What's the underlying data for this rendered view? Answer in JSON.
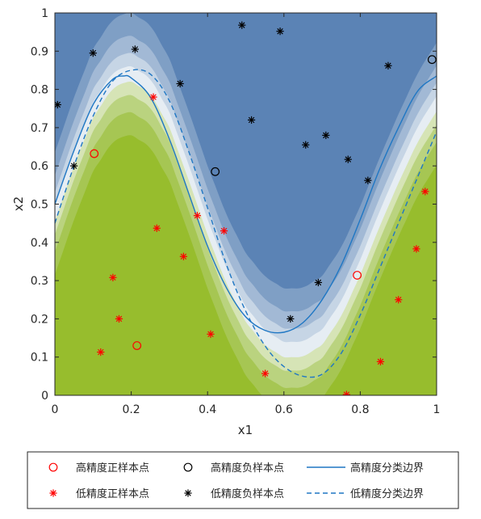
{
  "chart_data": {
    "type": "scatter",
    "title": "",
    "xlabel": "x1",
    "ylabel": "x2",
    "xlim": [
      0,
      1
    ],
    "ylim": [
      0,
      1
    ],
    "xticks": [
      "0",
      "0.2",
      "0.4",
      "0.6",
      "0.8",
      "1"
    ],
    "yticks": [
      "0",
      "0.1",
      "0.2",
      "0.3",
      "0.4",
      "0.5",
      "0.6",
      "0.7",
      "0.8",
      "0.9",
      "1"
    ],
    "grid": false,
    "legend_position": "bottom",
    "colors": {
      "negative_region": "#5b83b5",
      "positive_region": "#97bd2d",
      "boundary": "#1f77c4",
      "positive_marker": "#ff0000",
      "negative_marker": "#000000"
    },
    "series": [
      {
        "name": "高精度正样本点",
        "marker": "circle",
        "color": "#ff0000",
        "points": [
          [
            0.103,
            0.632
          ],
          [
            0.215,
            0.13
          ],
          [
            0.792,
            0.314
          ]
        ]
      },
      {
        "name": "高精度负样本点",
        "marker": "circle",
        "color": "#000000",
        "points": [
          [
            0.42,
            0.585
          ],
          [
            0.988,
            0.878
          ]
        ]
      },
      {
        "name": "低精度正样本点",
        "marker": "star",
        "color": "#ff0000",
        "points": [
          [
            0.258,
            0.78
          ],
          [
            0.267,
            0.437
          ],
          [
            0.373,
            0.47
          ],
          [
            0.443,
            0.43
          ],
          [
            0.337,
            0.363
          ],
          [
            0.152,
            0.308
          ],
          [
            0.168,
            0.2
          ],
          [
            0.12,
            0.113
          ],
          [
            0.408,
            0.16
          ],
          [
            0.551,
            0.057
          ],
          [
            0.764,
            0.002
          ],
          [
            0.853,
            0.088
          ],
          [
            0.9,
            0.25
          ],
          [
            0.947,
            0.383
          ],
          [
            0.97,
            0.533
          ]
        ]
      },
      {
        "name": "低精度负样本点",
        "marker": "star",
        "color": "#000000",
        "points": [
          [
            0.007,
            0.76
          ],
          [
            0.05,
            0.6
          ],
          [
            0.1,
            0.895
          ],
          [
            0.21,
            0.905
          ],
          [
            0.328,
            0.815
          ],
          [
            0.49,
            0.968
          ],
          [
            0.515,
            0.72
          ],
          [
            0.59,
            0.952
          ],
          [
            0.617,
            0.2
          ],
          [
            0.657,
            0.655
          ],
          [
            0.69,
            0.295
          ],
          [
            0.71,
            0.68
          ],
          [
            0.768,
            0.617
          ],
          [
            0.82,
            0.562
          ],
          [
            0.873,
            0.862
          ]
        ]
      },
      {
        "name": "高精度分类边界",
        "line_style": "solid",
        "color": "#1f77c4",
        "points": [
          [
            0,
            0.5
          ],
          [
            0.05,
            0.64
          ],
          [
            0.1,
            0.76
          ],
          [
            0.15,
            0.825
          ],
          [
            0.18,
            0.835
          ],
          [
            0.2,
            0.83
          ],
          [
            0.25,
            0.78
          ],
          [
            0.3,
            0.67
          ],
          [
            0.35,
            0.53
          ],
          [
            0.4,
            0.39
          ],
          [
            0.45,
            0.28
          ],
          [
            0.5,
            0.205
          ],
          [
            0.55,
            0.17
          ],
          [
            0.6,
            0.165
          ],
          [
            0.65,
            0.19
          ],
          [
            0.7,
            0.25
          ],
          [
            0.75,
            0.34
          ],
          [
            0.8,
            0.46
          ],
          [
            0.85,
            0.59
          ],
          [
            0.9,
            0.7
          ],
          [
            0.95,
            0.795
          ],
          [
            1,
            0.835
          ]
        ]
      },
      {
        "name": "低精度分类边界",
        "line_style": "dashed",
        "color": "#1f77c4",
        "points": [
          [
            0,
            0.45
          ],
          [
            0.05,
            0.6
          ],
          [
            0.1,
            0.73
          ],
          [
            0.15,
            0.82
          ],
          [
            0.2,
            0.85
          ],
          [
            0.25,
            0.84
          ],
          [
            0.3,
            0.77
          ],
          [
            0.35,
            0.64
          ],
          [
            0.4,
            0.49
          ],
          [
            0.45,
            0.34
          ],
          [
            0.5,
            0.22
          ],
          [
            0.55,
            0.13
          ],
          [
            0.6,
            0.075
          ],
          [
            0.65,
            0.05
          ],
          [
            0.7,
            0.055
          ],
          [
            0.75,
            0.11
          ],
          [
            0.8,
            0.21
          ],
          [
            0.85,
            0.33
          ],
          [
            0.9,
            0.45
          ],
          [
            0.95,
            0.57
          ],
          [
            1,
            0.69
          ]
        ]
      }
    ]
  }
}
